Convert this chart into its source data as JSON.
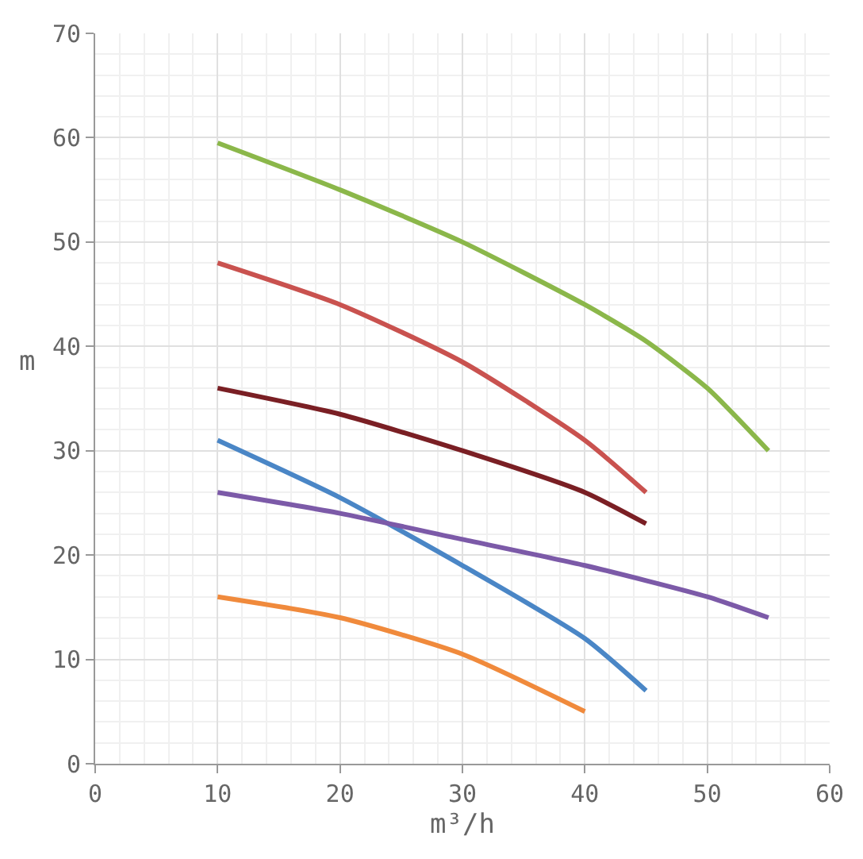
{
  "chart_data": {
    "type": "line",
    "xlabel": "m³/h",
    "ylabel": "m",
    "series": [
      {
        "color": "#8bb74a",
        "x": [
          10,
          20,
          30,
          40,
          45,
          50,
          55
        ],
        "values": [
          59.5,
          55,
          50,
          44,
          40.5,
          36,
          30
        ]
      },
      {
        "color": "#c9524f",
        "x": [
          10,
          20,
          30,
          40,
          45
        ],
        "values": [
          48,
          44,
          38.5,
          31,
          26
        ]
      },
      {
        "color": "#7a1f24",
        "x": [
          10,
          20,
          30,
          40,
          45
        ],
        "values": [
          36,
          33.5,
          30,
          26,
          23
        ]
      },
      {
        "color": "#4a86c6",
        "x": [
          10,
          20,
          30,
          40,
          45
        ],
        "values": [
          31,
          25.5,
          19,
          12,
          7
        ]
      },
      {
        "color": "#7c5aa8",
        "x": [
          10,
          20,
          30,
          40,
          50,
          55
        ],
        "values": [
          26,
          24,
          21.5,
          19,
          16,
          14
        ]
      },
      {
        "color": "#f08a3c",
        "x": [
          10,
          20,
          30,
          40
        ],
        "values": [
          16,
          14,
          10.5,
          5
        ]
      }
    ],
    "xlim": [
      0,
      60
    ],
    "xticks": [
      0,
      10,
      20,
      30,
      40,
      50,
      60
    ],
    "ylim": [
      0,
      70
    ],
    "yticks": [
      0,
      10,
      20,
      30,
      40,
      50,
      60,
      70
    ],
    "grid": true,
    "marker": "none",
    "line_style": "solid"
  }
}
